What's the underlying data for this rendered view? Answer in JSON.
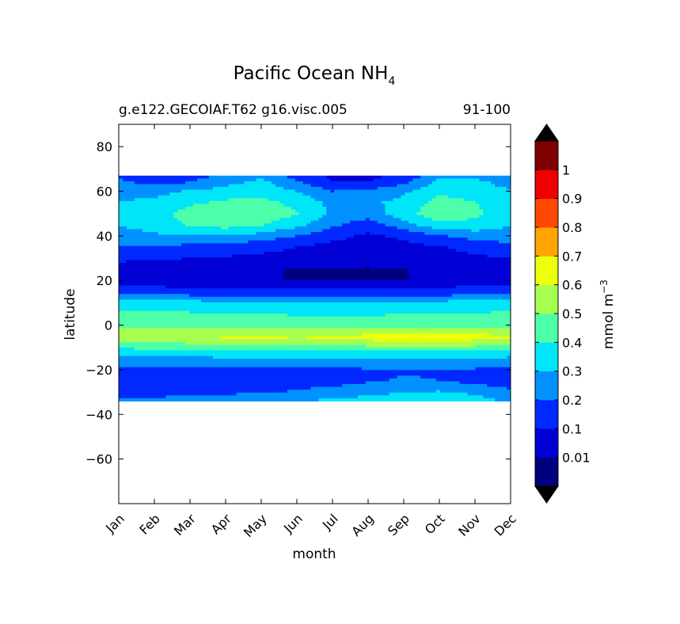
{
  "chart_data": {
    "type": "heatmap",
    "title": "Pacific Ocean NH",
    "title_subscript": "4",
    "subtitle_left": "g.e122.GECOIAF.T62 g16.visc.005",
    "subtitle_right": "91-100",
    "xlabel": "month",
    "ylabel": "latitude",
    "x": [
      "Jan",
      "Feb",
      "Mar",
      "Apr",
      "May",
      "Jun",
      "Jul",
      "Aug",
      "Sep",
      "Oct",
      "Nov",
      "Dec"
    ],
    "ylim": [
      -80,
      90
    ],
    "yticks": [
      80,
      60,
      40,
      20,
      0,
      -20,
      -40,
      -60
    ],
    "ytick_labels": [
      "80",
      "60",
      "40",
      "20",
      "0",
      "−20",
      "−40",
      "−60"
    ],
    "data_lat_range": [
      -34,
      67
    ],
    "colorbar": {
      "label": "mmol m",
      "label_superscript": "−3",
      "levels": [
        0.01,
        0.1,
        0.2,
        0.3,
        0.4,
        0.5,
        0.6,
        0.7,
        0.8,
        0.9,
        1
      ],
      "tick_labels": [
        "0.01",
        "0.1",
        "0.2",
        "0.3",
        "0.4",
        "0.5",
        "0.6",
        "0.7",
        "0.8",
        "0.9",
        "1"
      ],
      "colors": [
        "#00007f",
        "#0000d5",
        "#0029ff",
        "#0091ff",
        "#00e5f7",
        "#4dffa9",
        "#a6ff50",
        "#ecff0b",
        "#ffa500",
        "#ff4700",
        "#ee0000",
        "#7f0000"
      ],
      "extend": "both"
    },
    "latitudes": [
      67,
      64,
      60,
      55,
      50,
      45,
      40,
      35,
      30,
      25,
      20,
      15,
      10,
      5,
      0,
      -3,
      -6,
      -9,
      -12,
      -16,
      -20,
      -25,
      -30,
      -34
    ],
    "values": [
      [
        0.18,
        0.12,
        0.16,
        0.22,
        0.28,
        0.16,
        0.08,
        0.08,
        0.12,
        0.28,
        0.28,
        0.22
      ],
      [
        0.22,
        0.17,
        0.2,
        0.27,
        0.33,
        0.22,
        0.1,
        0.1,
        0.17,
        0.33,
        0.33,
        0.25
      ],
      [
        0.28,
        0.27,
        0.31,
        0.34,
        0.35,
        0.3,
        0.2,
        0.22,
        0.28,
        0.38,
        0.36,
        0.31
      ],
      [
        0.3,
        0.32,
        0.38,
        0.42,
        0.43,
        0.37,
        0.27,
        0.28,
        0.33,
        0.43,
        0.4,
        0.33
      ],
      [
        0.31,
        0.36,
        0.44,
        0.47,
        0.46,
        0.41,
        0.28,
        0.24,
        0.36,
        0.47,
        0.42,
        0.34
      ],
      [
        0.3,
        0.35,
        0.41,
        0.44,
        0.41,
        0.33,
        0.22,
        0.15,
        0.25,
        0.38,
        0.37,
        0.31
      ],
      [
        0.26,
        0.28,
        0.3,
        0.3,
        0.26,
        0.2,
        0.13,
        0.08,
        0.12,
        0.19,
        0.24,
        0.24
      ],
      [
        0.2,
        0.19,
        0.17,
        0.15,
        0.13,
        0.1,
        0.07,
        0.06,
        0.07,
        0.09,
        0.14,
        0.18
      ],
      [
        0.12,
        0.11,
        0.1,
        0.09,
        0.08,
        0.06,
        0.04,
        0.03,
        0.04,
        0.06,
        0.08,
        0.1
      ],
      [
        0.06,
        0.05,
        0.05,
        0.04,
        0.02,
        0.005,
        0.005,
        0.005,
        0.005,
        0.04,
        0.05,
        0.06
      ],
      [
        0.06,
        0.05,
        0.05,
        0.04,
        0.02,
        0.005,
        0.005,
        0.005,
        0.005,
        0.05,
        0.06,
        0.07
      ],
      [
        0.14,
        0.14,
        0.13,
        0.12,
        0.12,
        0.12,
        0.12,
        0.12,
        0.12,
        0.13,
        0.14,
        0.15
      ],
      [
        0.33,
        0.36,
        0.34,
        0.32,
        0.31,
        0.31,
        0.31,
        0.31,
        0.32,
        0.33,
        0.34,
        0.35
      ],
      [
        0.42,
        0.42,
        0.41,
        0.4,
        0.4,
        0.39,
        0.39,
        0.39,
        0.4,
        0.4,
        0.41,
        0.41
      ],
      [
        0.45,
        0.46,
        0.46,
        0.47,
        0.47,
        0.46,
        0.45,
        0.45,
        0.44,
        0.44,
        0.44,
        0.44
      ],
      [
        0.55,
        0.56,
        0.57,
        0.57,
        0.58,
        0.57,
        0.57,
        0.58,
        0.58,
        0.58,
        0.58,
        0.58
      ],
      [
        0.52,
        0.55,
        0.58,
        0.61,
        0.62,
        0.6,
        0.62,
        0.63,
        0.64,
        0.64,
        0.63,
        0.62
      ],
      [
        0.45,
        0.46,
        0.47,
        0.48,
        0.49,
        0.49,
        0.49,
        0.52,
        0.53,
        0.53,
        0.52,
        0.5
      ],
      [
        0.35,
        0.36,
        0.36,
        0.37,
        0.37,
        0.37,
        0.37,
        0.38,
        0.38,
        0.38,
        0.37,
        0.36
      ],
      [
        0.25,
        0.25,
        0.25,
        0.26,
        0.26,
        0.26,
        0.27,
        0.28,
        0.28,
        0.28,
        0.27,
        0.26
      ],
      [
        0.17,
        0.17,
        0.18,
        0.18,
        0.18,
        0.18,
        0.18,
        0.19,
        0.19,
        0.19,
        0.19,
        0.18
      ],
      [
        0.13,
        0.13,
        0.13,
        0.13,
        0.14,
        0.15,
        0.16,
        0.19,
        0.21,
        0.2,
        0.17,
        0.14
      ],
      [
        0.15,
        0.16,
        0.17,
        0.18,
        0.19,
        0.21,
        0.24,
        0.27,
        0.3,
        0.31,
        0.28,
        0.22
      ],
      [
        0.22,
        0.23,
        0.24,
        0.26,
        0.28,
        0.3,
        0.32,
        0.34,
        0.36,
        0.37,
        0.34,
        0.28
      ]
    ]
  }
}
